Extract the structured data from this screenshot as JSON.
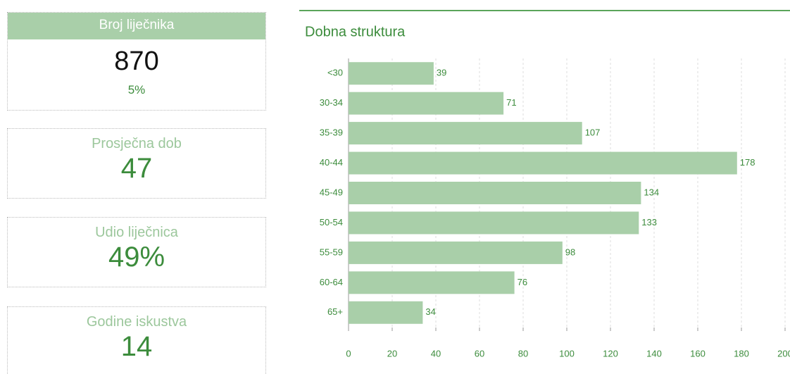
{
  "cards": [
    {
      "title": "Broj liječnika",
      "value": "870",
      "sub": "5%"
    },
    {
      "title": "Prosječna dob",
      "value": "47"
    },
    {
      "title": "Udio liječnica",
      "value": "49%"
    },
    {
      "title": "Godine iskustva",
      "value": "14"
    }
  ],
  "chart_data": {
    "type": "barh",
    "title": "Dobna struktura",
    "categories": [
      "<30",
      "30-34",
      "35-39",
      "40-44",
      "45-49",
      "50-54",
      "55-59",
      "60-64",
      "65+"
    ],
    "values": [
      39,
      71,
      107,
      178,
      134,
      133,
      98,
      76,
      34
    ],
    "color": "#a9cfa9",
    "xlim": [
      0,
      200
    ],
    "xticks": [
      0,
      20,
      40,
      60,
      80,
      100,
      120,
      140,
      160,
      180,
      200
    ],
    "grid": true
  }
}
